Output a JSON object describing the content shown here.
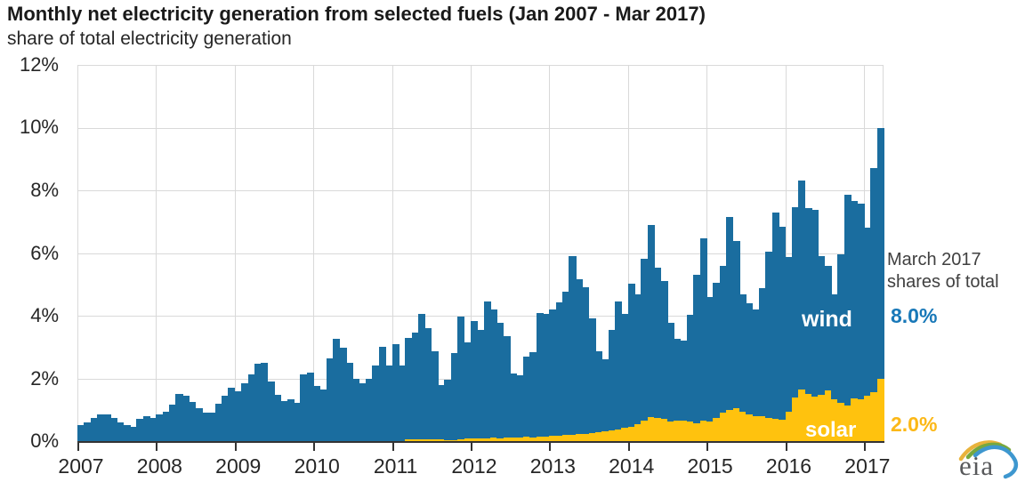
{
  "title": "Monthly net electricity generation from selected fuels (Jan 2007 - Mar 2017)",
  "subtitle": "share of total electricity generation",
  "annotation": {
    "line1": "March 2017",
    "line2": "shares of total",
    "wind_share": "8.0%",
    "solar_share": "2.0%"
  },
  "series_labels": {
    "wind": "wind",
    "solar": "solar"
  },
  "logo_text": "eia",
  "colors": {
    "wind": "#1a6d9f",
    "solar": "#ffc20e",
    "wind_text": "#1878b8",
    "solar_text": "#fcb817",
    "grid": "#d9d9d9",
    "axis": "#333333"
  },
  "chart_data": {
    "type": "bar",
    "stacked": true,
    "x_start": "2007-01",
    "x_end": "2017-03",
    "months_total": 123,
    "x_tick_labels": [
      "2007",
      "2008",
      "2009",
      "2010",
      "2011",
      "2012",
      "2013",
      "2014",
      "2015",
      "2016",
      "2017"
    ],
    "y_ticks": [
      0,
      2,
      4,
      6,
      8,
      10,
      12
    ],
    "y_tick_suffix": "%",
    "ylim": [
      0,
      12
    ],
    "grid": true,
    "series": [
      {
        "name": "solar",
        "values": [
          0,
          0,
          0,
          0,
          0,
          0,
          0,
          0,
          0,
          0,
          0,
          0,
          0,
          0,
          0,
          0,
          0,
          0,
          0,
          0,
          0,
          0,
          0,
          0,
          0,
          0,
          0,
          0,
          0,
          0,
          0,
          0,
          0,
          0,
          0,
          0,
          0,
          0,
          0,
          0,
          0,
          0,
          0,
          0,
          0,
          0,
          0,
          0,
          0,
          0,
          0.05,
          0.06,
          0.06,
          0.05,
          0.05,
          0.05,
          0.04,
          0.03,
          0.05,
          0.08,
          0.08,
          0.09,
          0.08,
          0.1,
          0.09,
          0.1,
          0.1,
          0.12,
          0.13,
          0.12,
          0.14,
          0.15,
          0.16,
          0.18,
          0.19,
          0.21,
          0.22,
          0.24,
          0.26,
          0.28,
          0.32,
          0.34,
          0.37,
          0.42,
          0.45,
          0.55,
          0.65,
          0.77,
          0.75,
          0.72,
          0.62,
          0.65,
          0.66,
          0.62,
          0.58,
          0.65,
          0.62,
          0.75,
          0.9,
          1.0,
          1.05,
          0.95,
          0.85,
          0.8,
          0.8,
          0.75,
          0.7,
          0.67,
          0.94,
          1.4,
          1.65,
          1.51,
          1.42,
          1.47,
          1.61,
          1.32,
          1.23,
          1.13,
          1.37,
          1.32,
          1.45,
          1.55,
          2.0
        ]
      },
      {
        "name": "wind",
        "values": [
          0.5,
          0.59,
          0.73,
          0.85,
          0.85,
          0.73,
          0.61,
          0.5,
          0.45,
          0.7,
          0.8,
          0.75,
          0.85,
          0.95,
          1.15,
          1.5,
          1.45,
          1.25,
          1.05,
          0.9,
          0.92,
          1.2,
          1.45,
          1.7,
          1.6,
          1.84,
          2.13,
          2.46,
          2.5,
          1.9,
          1.47,
          1.28,
          1.33,
          1.23,
          2.13,
          2.18,
          1.75,
          1.65,
          2.65,
          3.26,
          2.98,
          2.5,
          1.98,
          1.84,
          1.98,
          2.41,
          3.0,
          2.4,
          3.1,
          2.4,
          3.25,
          3.39,
          4.0,
          3.55,
          2.83,
          1.75,
          1.91,
          2.77,
          3.92,
          3.08,
          3.75,
          3.46,
          4.37,
          4.1,
          3.69,
          3.25,
          2.05,
          1.98,
          2.57,
          2.73,
          3.96,
          3.9,
          4.04,
          4.26,
          4.58,
          5.7,
          4.93,
          4.67,
          3.66,
          2.59,
          2.28,
          3.21,
          4.08,
          3.65,
          4.56,
          4.13,
          5.17,
          6.13,
          4.78,
          4.39,
          3.16,
          2.61,
          2.55,
          3.4,
          4.72,
          5.82,
          3.98,
          4.31,
          4.68,
          6.14,
          5.33,
          3.73,
          3.55,
          3.41,
          4.07,
          5.3,
          6.58,
          6.18,
          4.92,
          6.07,
          6.65,
          5.91,
          5.95,
          4.44,
          3.97,
          3.36,
          4.73,
          6.72,
          6.29,
          6.25,
          5.36,
          7.15,
          8.0
        ]
      }
    ]
  }
}
